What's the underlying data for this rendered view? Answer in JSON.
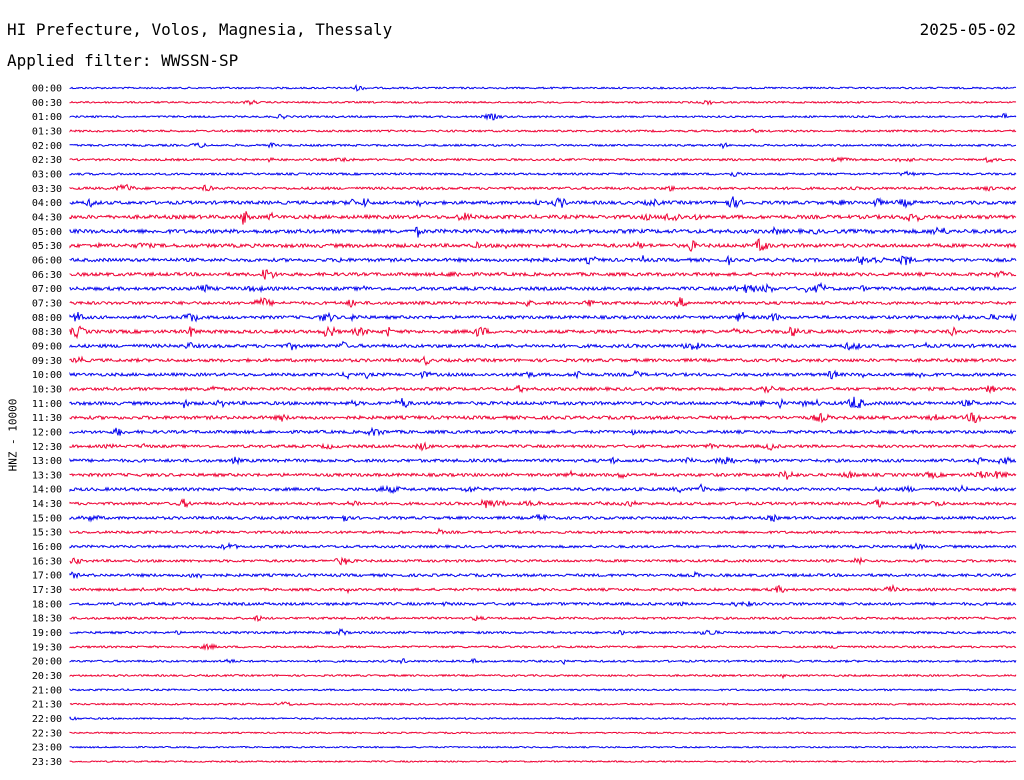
{
  "header": {
    "station_title": "HI Prefecture, Volos, Magnesia, Thessaly",
    "date": "2025-05-02",
    "filter_label": "Applied filter:",
    "filter_value": "WWSSN-SP"
  },
  "channel_label": "HNZ - 10000",
  "colors": {
    "blue": "#0000ee",
    "red": "#ee0033",
    "text": "#000000",
    "background": "#ffffff"
  },
  "chart_data": {
    "type": "line",
    "title": "HI Prefecture, Volos, Magnesia, Thessaly",
    "date": "2025-05-02",
    "ylabel": "HNZ - 10000",
    "row_labels": [
      "00:00",
      "00:30",
      "01:00",
      "01:30",
      "02:00",
      "02:30",
      "03:00",
      "03:30",
      "04:00",
      "04:30",
      "05:00",
      "05:30",
      "06:00",
      "06:30",
      "07:00",
      "07:30",
      "08:00",
      "08:30",
      "09:00",
      "09:30",
      "10:00",
      "10:30",
      "11:00",
      "11:30",
      "12:00",
      "12:30",
      "13:00",
      "13:30",
      "14:00",
      "14:30",
      "15:00",
      "15:30",
      "16:00",
      "16:30",
      "17:00",
      "17:30",
      "18:00",
      "18:30",
      "19:00",
      "19:30",
      "20:00",
      "20:30",
      "21:00",
      "21:30",
      "22:00",
      "22:30",
      "23:00",
      "23:30"
    ],
    "row_colors": [
      "blue",
      "red"
    ],
    "noise_level": [
      0.2,
      0.2,
      0.25,
      0.3,
      0.3,
      0.35,
      0.35,
      0.5,
      0.8,
      0.9,
      1.0,
      0.9,
      0.8,
      0.8,
      0.8,
      0.7,
      0.7,
      0.8,
      0.8,
      0.7,
      0.7,
      0.7,
      0.8,
      0.8,
      0.7,
      0.6,
      0.7,
      0.7,
      0.7,
      0.6,
      0.6,
      0.5,
      0.5,
      0.5,
      0.6,
      0.5,
      0.6,
      0.4,
      0.4,
      0.3,
      0.3,
      0.25,
      0.2,
      0.2,
      0.15,
      0.1,
      0.1,
      0.1
    ],
    "grid": false,
    "legend": "none"
  }
}
